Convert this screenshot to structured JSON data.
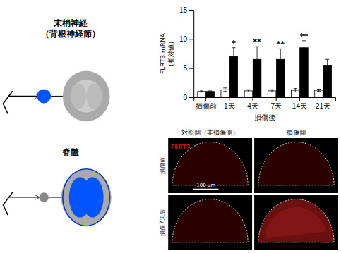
{
  "chart_data": {
    "type": "bar",
    "categories": [
      "損傷前",
      "1天",
      "4天",
      "7天",
      "14天",
      "21天"
    ],
    "xlabel": "損傷後",
    "ylabel": "FLRT3 mRNA\n（相対値）",
    "series": [
      {
        "color": "white",
        "values": [
          1.0,
          1.3,
          1.1,
          1.1,
          1.2,
          1.2
        ],
        "errors": [
          0.1,
          0.3,
          0.2,
          0.2,
          0.3,
          0.2
        ]
      },
      {
        "color": "black",
        "values": [
          1.0,
          7.0,
          6.5,
          6.5,
          8.5,
          5.5
        ],
        "errors": [
          0.1,
          1.5,
          2.2,
          1.8,
          1.2,
          1.0
        ],
        "significance": [
          null,
          "*",
          "**",
          "**",
          "**",
          null
        ]
      }
    ],
    "ylim": [
      0,
      15
    ],
    "yticks": [
      0,
      5,
      10,
      15
    ],
    "annotations": [
      "末梢神経\n（背根神経節）",
      "脊髓",
      "対照側（非損傷側）",
      "損傷側",
      "損傷前",
      "損傷7天后",
      "100 μm",
      "FLRT3"
    ]
  }
}
